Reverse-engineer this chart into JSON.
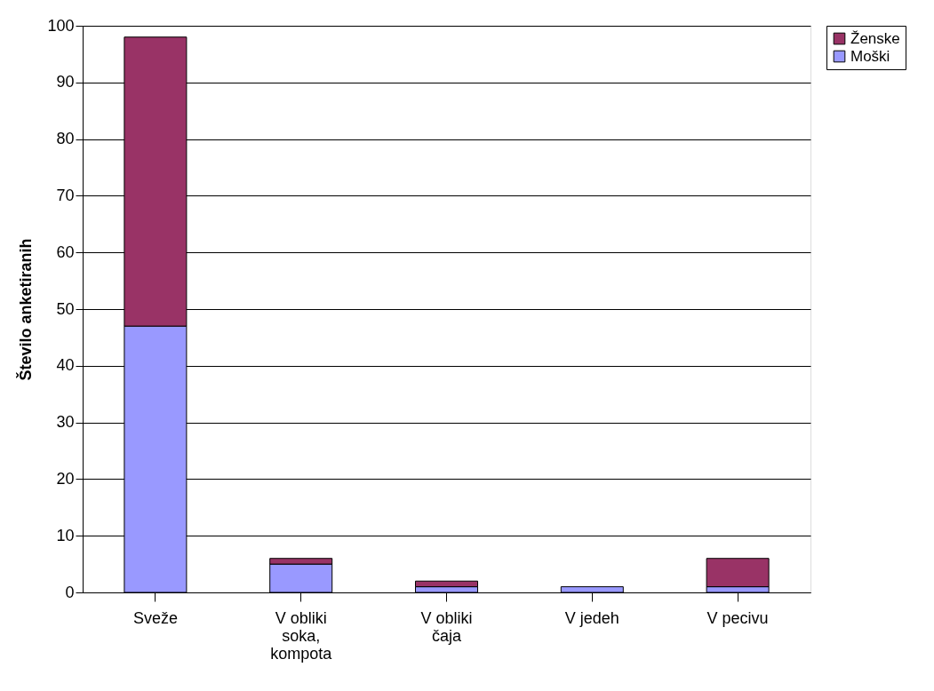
{
  "chart_data": {
    "type": "bar",
    "stacked": true,
    "ylabel": "Število anketiranih",
    "categories": [
      "Sveže",
      "V obliki soka, kompota",
      "V obliki čaja",
      "V jedeh",
      "V pecivu"
    ],
    "series": [
      {
        "name": "Moški",
        "color": "#9999ff",
        "values": [
          47,
          5,
          1,
          1,
          1
        ]
      },
      {
        "name": "Ženske",
        "color": "#993366",
        "values": [
          51,
          1,
          1,
          0,
          5
        ]
      }
    ],
    "ylim": [
      0,
      100
    ],
    "yticks": [
      0,
      10,
      20,
      30,
      40,
      50,
      60,
      70,
      80,
      90,
      100
    ],
    "grid": "y",
    "legend": "right"
  }
}
